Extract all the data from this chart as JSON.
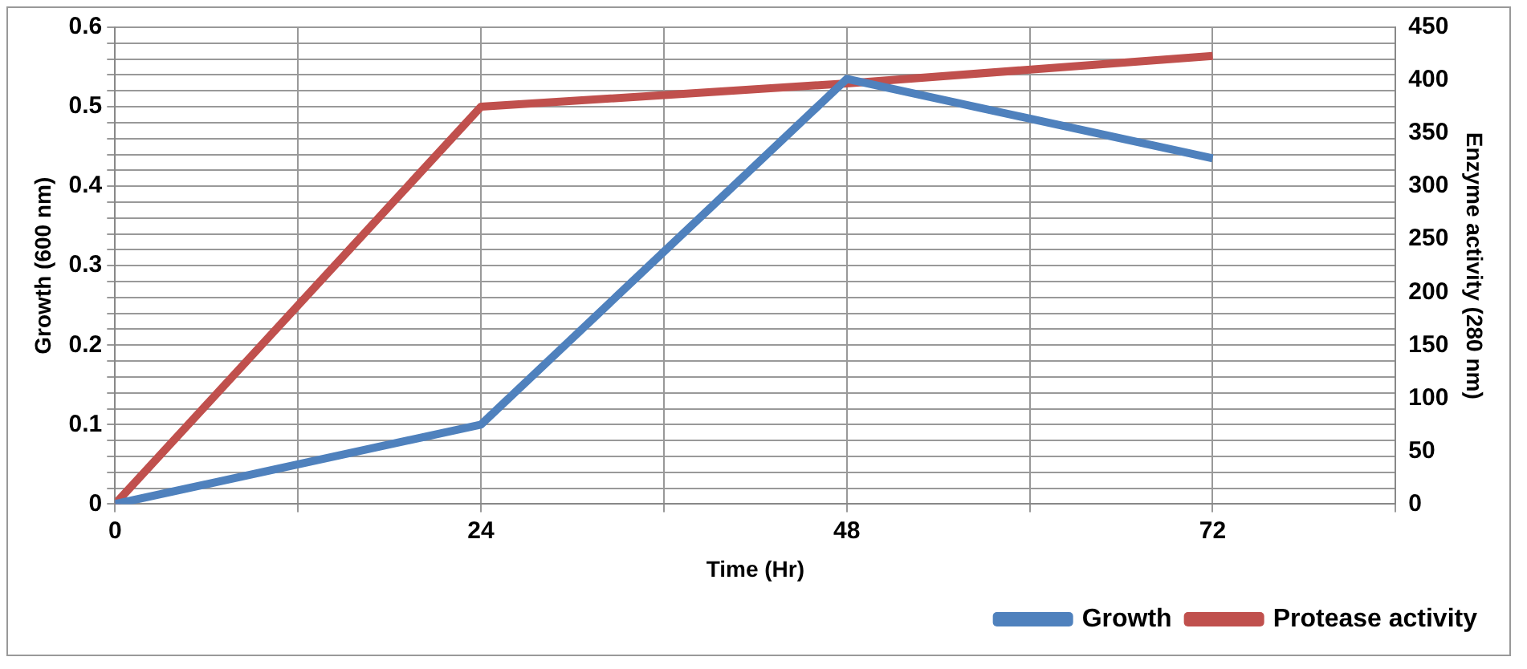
{
  "chart_data": {
    "type": "line",
    "xlabel": "Time (Hr)",
    "ylabel": "Growth (600 nm)",
    "y2label": "Enzyme activity (280 nm)",
    "x": [
      0,
      24,
      48,
      72
    ],
    "series": [
      {
        "name": "Growth",
        "color": "#4f81bd",
        "values": [
          0,
          0.1,
          0.535,
          0.435
        ]
      },
      {
        "name": "Protease activity",
        "color": "#c0504d",
        "values": [
          0,
          375,
          397,
          423
        ],
        "axis": "y2"
      }
    ],
    "xlim": [
      0,
      84
    ],
    "xticks": [
      0,
      {
        "value": 12,
        "label": null
      },
      24,
      {
        "value": 36,
        "label": null
      },
      48,
      {
        "value": 60,
        "label": null
      },
      72,
      {
        "value": 84,
        "label": null
      }
    ],
    "ylim": [
      0,
      0.6
    ],
    "yticks": [
      0,
      {
        "value": 0.02,
        "label": null
      },
      {
        "value": 0.04,
        "label": null
      },
      {
        "value": 0.06,
        "label": null
      },
      {
        "value": 0.08,
        "label": null
      },
      0.1,
      {
        "value": 0.12,
        "label": null
      },
      {
        "value": 0.14,
        "label": null
      },
      {
        "value": 0.16,
        "label": null
      },
      {
        "value": 0.18,
        "label": null
      },
      0.2,
      {
        "value": 0.22,
        "label": null
      },
      {
        "value": 0.24,
        "label": null
      },
      {
        "value": 0.26,
        "label": null
      },
      {
        "value": 0.28,
        "label": null
      },
      0.3,
      {
        "value": 0.32,
        "label": null
      },
      {
        "value": 0.34,
        "label": null
      },
      {
        "value": 0.36,
        "label": null
      },
      {
        "value": 0.38,
        "label": null
      },
      0.4,
      {
        "value": 0.42,
        "label": null
      },
      {
        "value": 0.44,
        "label": null
      },
      {
        "value": 0.46,
        "label": null
      },
      {
        "value": 0.48,
        "label": null
      },
      0.5,
      {
        "value": 0.52,
        "label": null
      },
      {
        "value": 0.54,
        "label": null
      },
      {
        "value": 0.56,
        "label": null
      },
      {
        "value": 0.58,
        "label": null
      },
      0.6
    ],
    "y2lim": [
      0,
      450
    ],
    "y2ticks": [
      0,
      50,
      100,
      150,
      200,
      250,
      300,
      350,
      400,
      450
    ],
    "grid": true,
    "legend": "bottom right",
    "marker": "none",
    "line_style": "solid"
  }
}
